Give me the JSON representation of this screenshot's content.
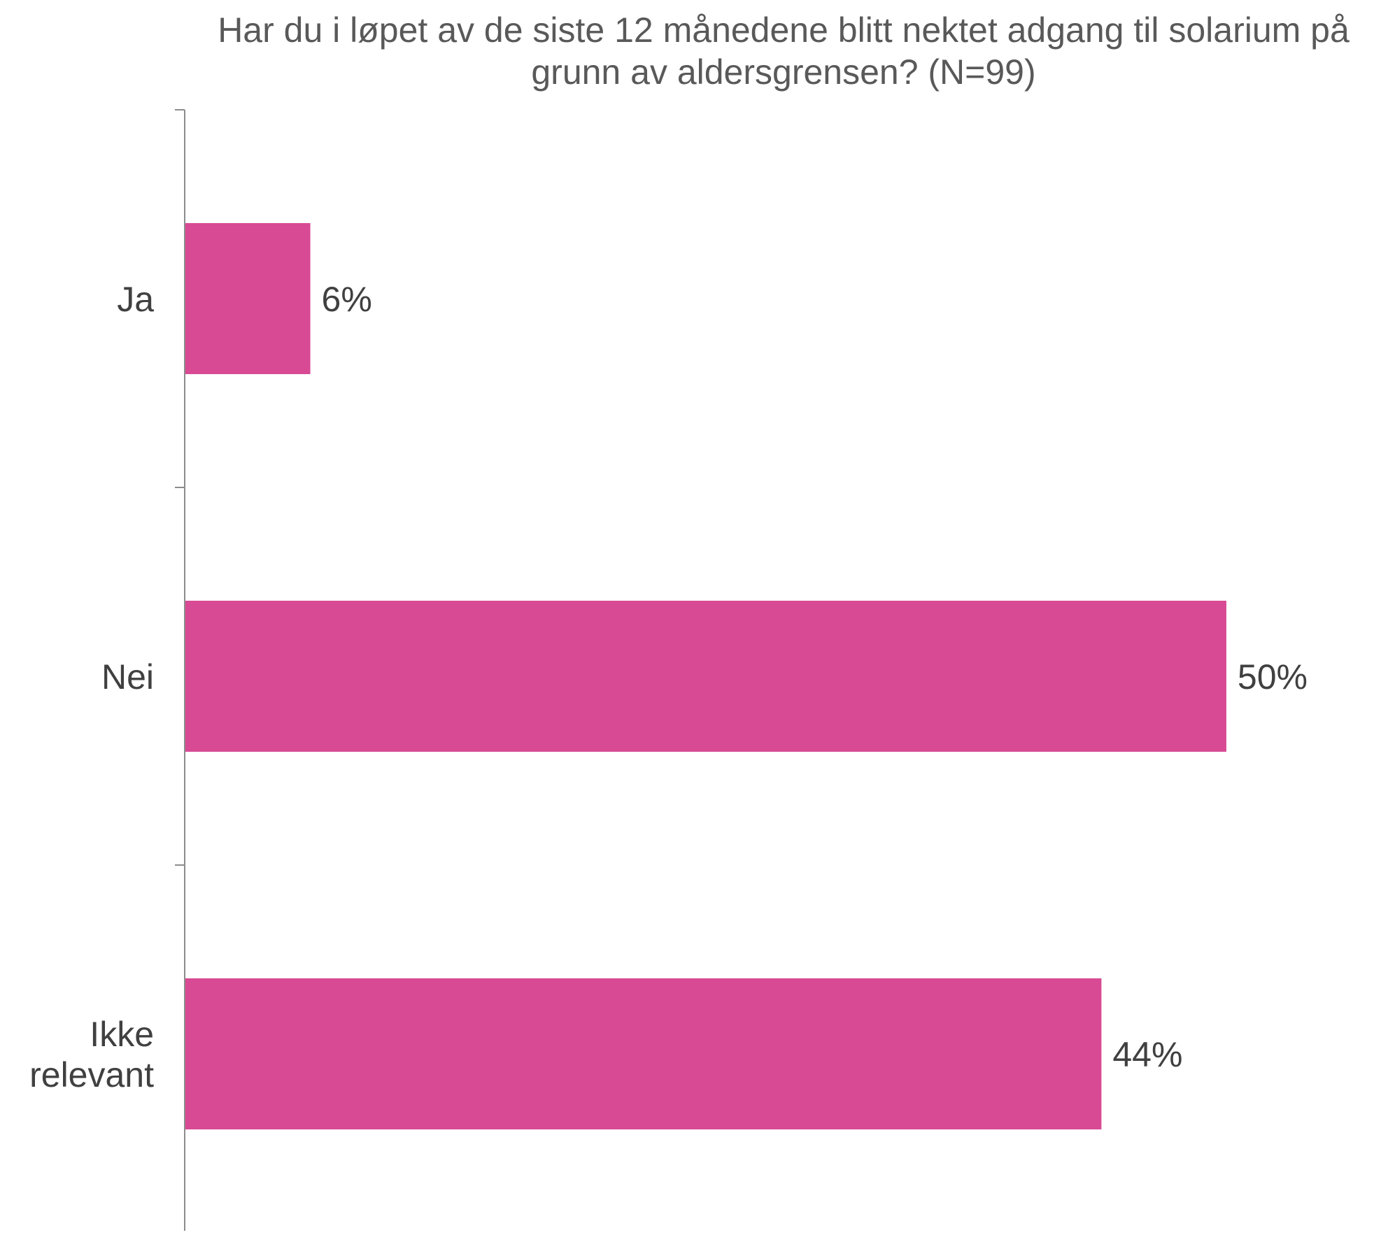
{
  "chart_data": {
    "type": "bar",
    "orientation": "horizontal",
    "title_lines": [
      "Har du i løpet av de siste 12 månedene blitt nektet adgang til solarium på",
      "grunn av aldersgrensen? (N=99)"
    ],
    "categories": [
      {
        "lines": [
          "Ja"
        ]
      },
      {
        "lines": [
          "Nei"
        ]
      },
      {
        "lines": [
          "Ikke",
          "relevant"
        ]
      }
    ],
    "values": [
      6,
      50,
      44
    ],
    "value_labels": [
      "6%",
      "50%",
      "44%"
    ],
    "xlim": [
      0,
      58
    ],
    "grid": false,
    "legend": "none",
    "bar_color": "#d84a94"
  }
}
